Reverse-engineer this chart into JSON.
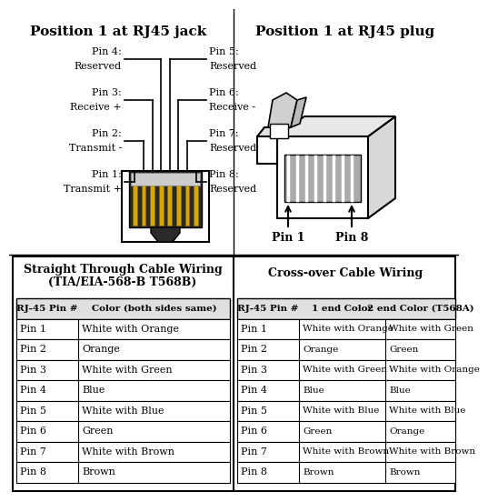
{
  "title_left": "Position 1 at RJ45 jack",
  "title_right": "Position 1 at RJ45 plug",
  "left_pin_names": [
    "Pin 4:",
    "Pin 3:",
    "Pin 2:",
    "Pin 1:"
  ],
  "left_pin_labels": [
    "Reserved",
    "Receive +",
    "Transmit -",
    "Transmit +"
  ],
  "right_pin_names": [
    "Pin 5:",
    "Pin 6:",
    "Pin 7:",
    "Pin 8:"
  ],
  "right_pin_labels": [
    "Reserved",
    "Receive -",
    "Reserved",
    "Reserved"
  ],
  "straight_header1": "Straight Through Cable Wiring",
  "straight_header2": "(TIA/EIA-568-B T568B)",
  "crossover_header": "Cross-over Cable Wiring",
  "straight_col1": "RJ-45 Pin #",
  "straight_col2": "Color (both sides same)",
  "crossover_col1": "RJ-45 Pin #",
  "crossover_col2": "1 end Color",
  "crossover_col3": "2 end Color (T568A)",
  "pin_rows": [
    "Pin 1",
    "Pin 2",
    "Pin 3",
    "Pin 4",
    "Pin 5",
    "Pin 6",
    "Pin 7",
    "Pin 8"
  ],
  "straight_colors": [
    "White with Orange",
    "Orange",
    "White with Green",
    "Blue",
    "White with Blue",
    "Green",
    "White with Brown",
    "Brown"
  ],
  "crossover_1end": [
    "White with Orange",
    "Orange",
    "White with Green",
    "Blue",
    "White with Blue",
    "Green",
    "White with Brown",
    "Brown"
  ],
  "crossover_2end": [
    "White with Green",
    "Green",
    "White with Orange",
    "Blue",
    "White with Blue",
    "Orange",
    "White with Brown",
    "Brown"
  ],
  "bg_white": "#ffffff",
  "bg_light": "#f5f5f5",
  "border_color": "#000000",
  "text_color": "#000000"
}
